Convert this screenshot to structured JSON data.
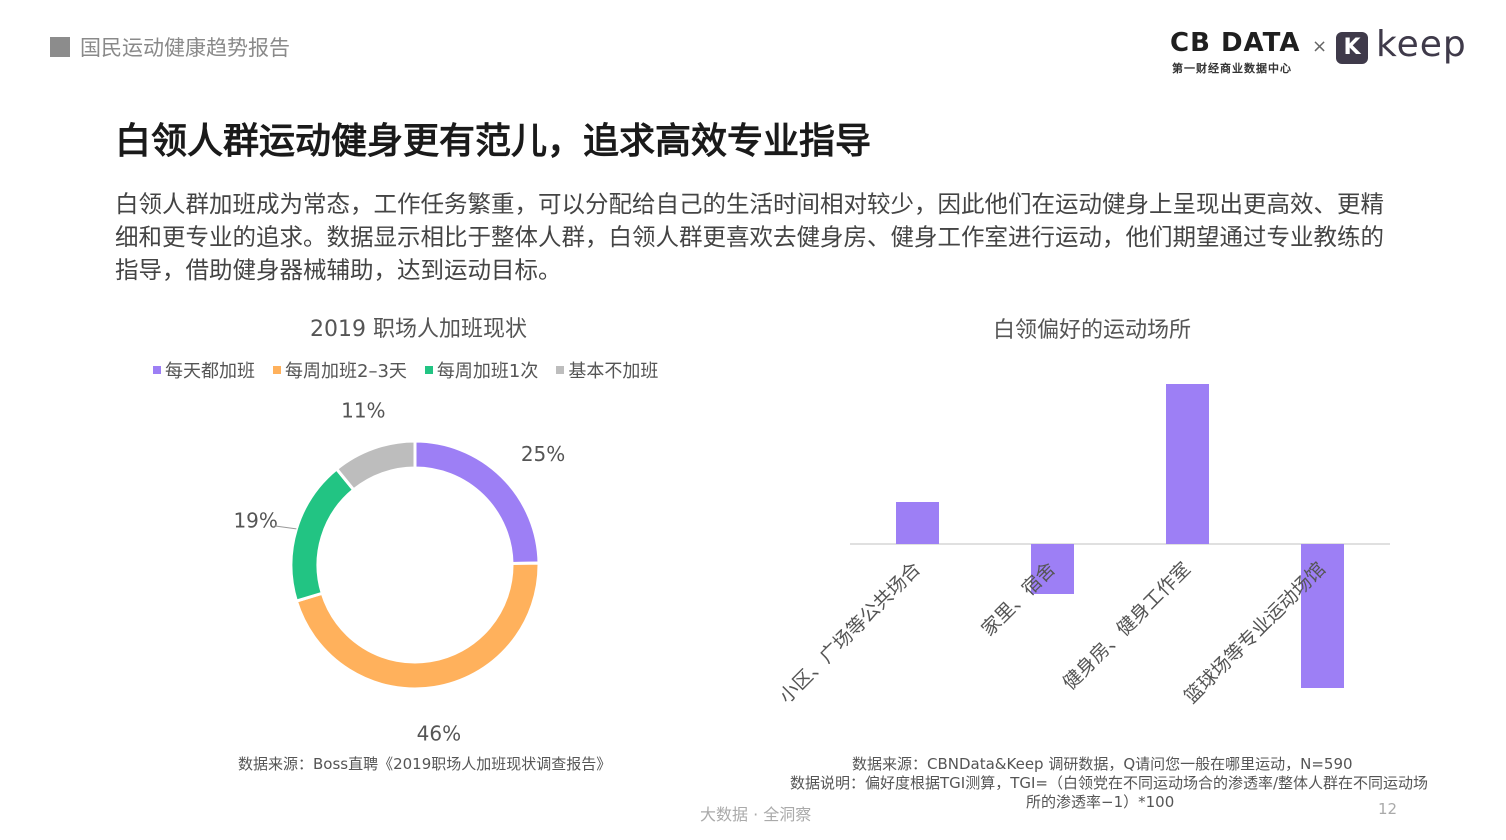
{
  "header": {
    "report_title": "国民运动健康趋势报告",
    "cbn_logo_main": "CB DATA",
    "cbn_logo_sub": "第一财经商业数据中心",
    "times": "×",
    "keep_badge": "K",
    "keep_word": "keep"
  },
  "main_title": "白领人群运动健身更有范儿，追求高效专业指导",
  "description": "白领人群加班成为常态，工作任务繁重，可以分配给自己的生活时间相对较少，因此他们在运动健身上呈现出更高效、更精细和更专业的追求。数据显示相比于整体人群，白领人群更喜欢去健身房、健身工作室进行运动，他们期望通过专业教练的指导，借助健身器械辅助，达到运动目标。",
  "colors": {
    "purple": "#9d7ff5",
    "orange": "#ffb15c",
    "green": "#22c483",
    "gray": "#bdbdbd"
  },
  "chart_data": [
    {
      "type": "pie",
      "title": "2019 职场人加班现状",
      "categories": [
        "每天都加班",
        "每周加班2–3天",
        "每周加班1次",
        "基本不加班"
      ],
      "values": [
        25,
        46,
        19,
        11
      ],
      "data_labels": [
        "25%",
        "46%",
        "19%",
        "11%"
      ],
      "legend": "top"
    },
    {
      "type": "bar",
      "title": "白领偏好的运动场所",
      "categories": [
        "小区、广场等公共场合",
        "家里、宿舍",
        "健身房、健身工作室",
        "篮球场等专业运动场馆"
      ],
      "values": [
        42,
        -50,
        160,
        -144
      ],
      "grid": false
    }
  ],
  "sources": {
    "left": "数据来源：Boss直聘《2019职场人加班现状调查报告》",
    "right_1": "数据来源：CBNData&Keep 调研数据，Q请问您一般在哪里运动，N=590",
    "right_2": "数据说明：偏好度根据TGI测算，TGI=（白领党在不同运动场合的渗透率/整体人群在不同运动场",
    "right_3": "所的渗透率−1）*100"
  },
  "footer": {
    "brand": "大数据 · 全洞察",
    "page": "12"
  }
}
